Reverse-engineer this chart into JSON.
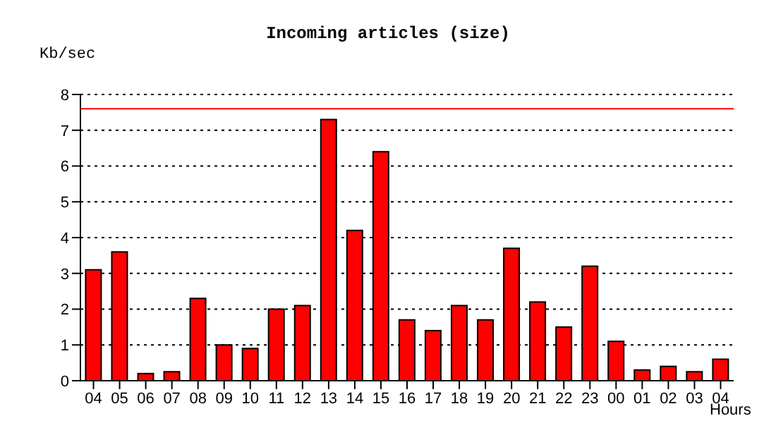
{
  "chart_data": {
    "type": "bar",
    "title": "Incoming articles (size)",
    "ylabel": "Kb/sec",
    "xlabel": "Hours",
    "categories": [
      "04",
      "05",
      "06",
      "07",
      "08",
      "09",
      "10",
      "11",
      "12",
      "13",
      "14",
      "15",
      "16",
      "17",
      "18",
      "19",
      "20",
      "21",
      "22",
      "23",
      "00",
      "01",
      "02",
      "03",
      "04"
    ],
    "values": [
      3.1,
      3.6,
      0.2,
      0.25,
      2.3,
      1.0,
      0.9,
      2.0,
      2.1,
      7.3,
      4.2,
      6.4,
      1.7,
      1.4,
      2.1,
      1.7,
      3.7,
      2.2,
      1.5,
      3.2,
      1.1,
      0.3,
      0.4,
      0.25,
      0.6
    ],
    "color": "#ff0000",
    "ylim": [
      0,
      8
    ],
    "yticks": [
      0,
      1,
      2,
      3,
      4,
      5,
      6,
      7,
      8
    ],
    "grid": "y",
    "ref_lines": [
      {
        "axis": "y",
        "value": 7.6,
        "color": "#ff0000"
      }
    ]
  }
}
